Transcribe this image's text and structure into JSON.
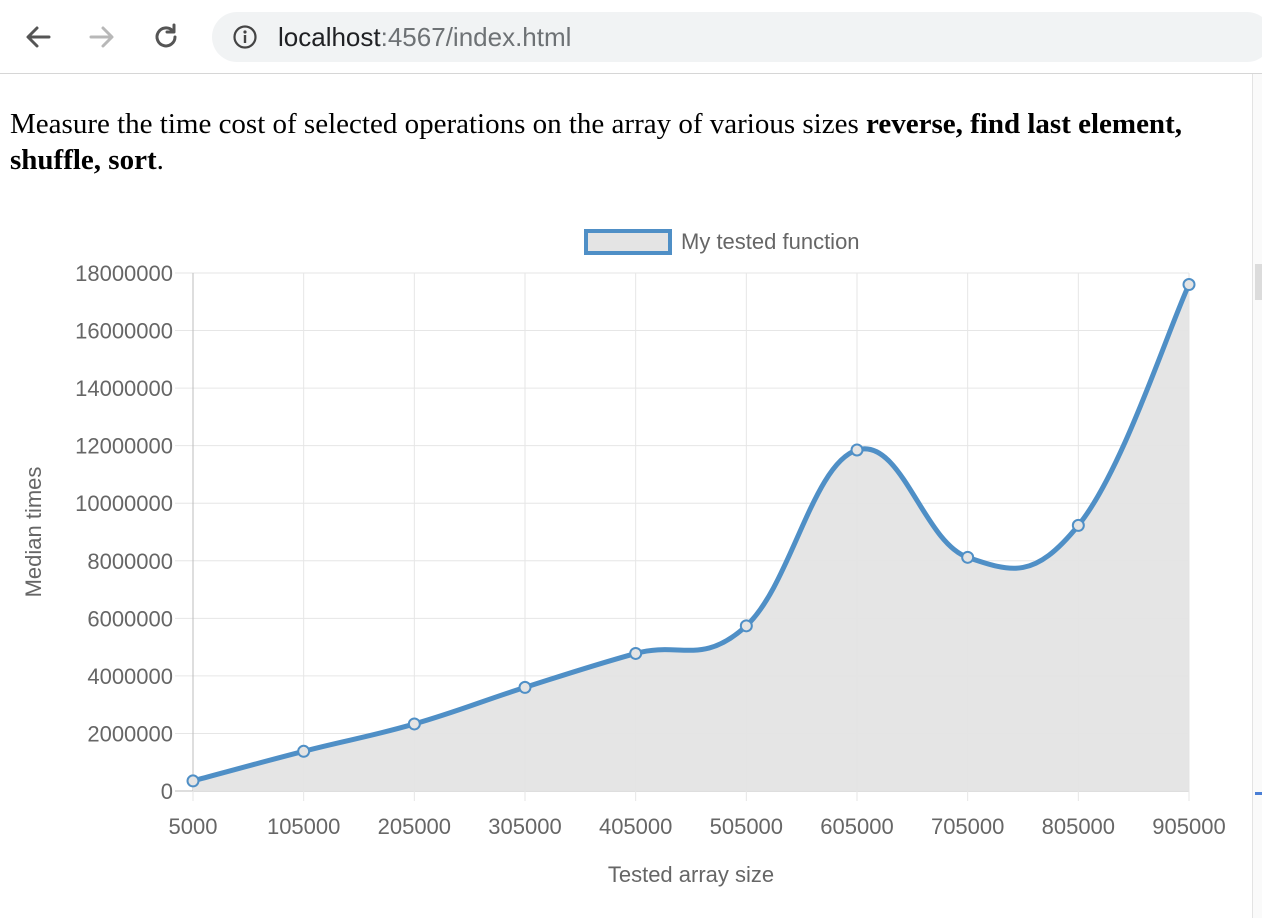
{
  "browser": {
    "url_host": "localhost",
    "url_rest": ":4567/index.html",
    "icons": [
      "back-arrow-icon",
      "forward-arrow-icon",
      "reload-icon",
      "info-icon"
    ]
  },
  "page": {
    "intro_prefix": "Measure the time cost of selected operations on the array of various sizes ",
    "intro_bold": "reverse, find last element, shuffle, sort",
    "intro_suffix": "."
  },
  "chart_data": {
    "type": "line",
    "series": [
      {
        "name": "My tested function",
        "values": [
          350000,
          1380000,
          2330000,
          3600000,
          4780000,
          5740000,
          11850000,
          8120000,
          9230000,
          17600000
        ]
      }
    ],
    "x": [
      5000,
      105000,
      205000,
      305000,
      405000,
      505000,
      605000,
      705000,
      805000,
      905000
    ],
    "xlabel": "Tested array size",
    "ylabel": "Median times",
    "ylim": [
      0,
      18000000
    ],
    "yticks": [
      0,
      2000000,
      4000000,
      6000000,
      8000000,
      10000000,
      12000000,
      14000000,
      16000000,
      18000000
    ],
    "grid": true,
    "fill": true,
    "legend": "top-center",
    "colors": {
      "line": "#4f8fc6",
      "fill": "#e4e4e4",
      "grid": "#e6e6e6",
      "axis_text": "#666666"
    }
  }
}
